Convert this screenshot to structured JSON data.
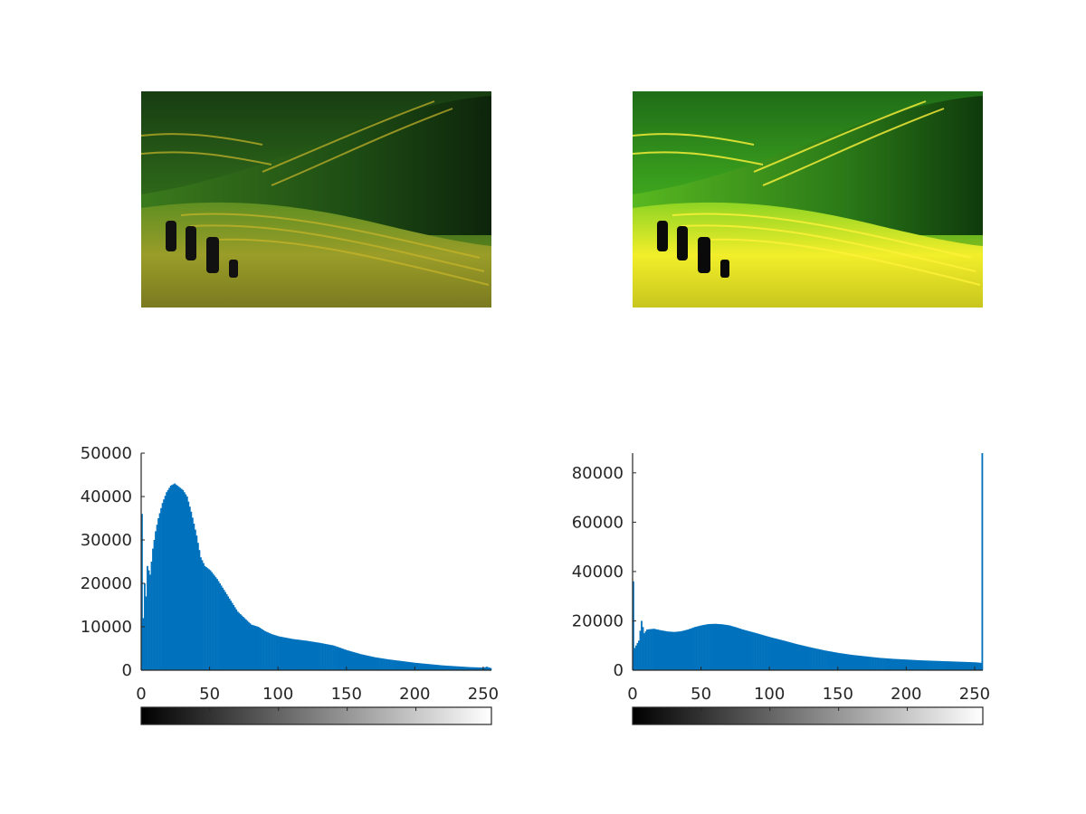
{
  "figure": {
    "background": "#ffffff",
    "bar_color": "#0072bd",
    "axis_color": "#262626"
  },
  "images": [
    {
      "name": "original-image",
      "description_icon": "terraced-rice-field-photo",
      "tone": "dark"
    },
    {
      "name": "equalized-image",
      "description_icon": "terraced-rice-field-photo",
      "tone": "bright"
    }
  ],
  "chart_data": [
    {
      "type": "bar",
      "title": "",
      "xlabel": "",
      "ylabel": "",
      "xlim": [
        0,
        256
      ],
      "ylim": [
        0,
        50000
      ],
      "xticks": [
        0,
        50,
        100,
        150,
        200,
        250
      ],
      "yticks": [
        0,
        10000,
        20000,
        30000,
        40000,
        50000
      ],
      "xtick_labels": [
        "0",
        "50",
        "100",
        "150",
        "200",
        "250"
      ],
      "ytick_labels": [
        "0",
        "10000",
        "20000",
        "30000",
        "40000",
        "50000"
      ],
      "grid": false,
      "colorbar": "grayscale 0-255",
      "anchors": {
        "x": [
          0,
          1,
          2,
          3,
          4,
          6,
          8,
          10,
          12,
          15,
          18,
          21,
          24,
          26,
          28,
          30,
          33,
          36,
          40,
          43,
          46,
          50,
          55,
          60,
          65,
          70,
          75,
          80,
          85,
          90,
          95,
          100,
          110,
          120,
          130,
          140,
          150,
          160,
          170,
          180,
          190,
          200,
          210,
          220,
          230,
          240,
          250,
          252,
          255
        ],
        "y": [
          36000,
          12000,
          20000,
          17000,
          24000,
          22000,
          28000,
          32000,
          35000,
          38500,
          41000,
          42500,
          43000,
          42500,
          42000,
          41500,
          40000,
          36500,
          31000,
          26000,
          24000,
          23000,
          21000,
          18500,
          16000,
          13500,
          12000,
          10500,
          10000,
          9000,
          8300,
          7800,
          7200,
          6800,
          6300,
          5700,
          4600,
          3700,
          3000,
          2500,
          2100,
          1700,
          1400,
          1100,
          900,
          700,
          600,
          800,
          500
        ]
      }
    },
    {
      "type": "bar",
      "title": "",
      "xlabel": "",
      "ylabel": "",
      "xlim": [
        0,
        256
      ],
      "ylim": [
        0,
        88000
      ],
      "xticks": [
        0,
        50,
        100,
        150,
        200,
        250
      ],
      "yticks": [
        0,
        20000,
        40000,
        60000,
        80000
      ],
      "xtick_labels": [
        "0",
        "50",
        "100",
        "150",
        "200",
        "250"
      ],
      "ytick_labels": [
        "0",
        "20000",
        "40000",
        "60000",
        "80000"
      ],
      "grid": false,
      "colorbar": "grayscale 0-255",
      "anchors": {
        "x": [
          0,
          1,
          2,
          4,
          6,
          8,
          10,
          15,
          20,
          25,
          30,
          35,
          40,
          45,
          50,
          55,
          60,
          65,
          70,
          75,
          80,
          90,
          100,
          110,
          120,
          130,
          140,
          150,
          160,
          170,
          180,
          190,
          200,
          210,
          220,
          230,
          240,
          250,
          254,
          255
        ],
        "y": [
          36000,
          9000,
          10000,
          12000,
          20000,
          15000,
          16500,
          16800,
          16200,
          15700,
          15500,
          15800,
          16500,
          17500,
          18200,
          18700,
          18800,
          18600,
          18200,
          17400,
          16500,
          15000,
          13400,
          12000,
          10500,
          9200,
          8000,
          7000,
          6200,
          5600,
          5000,
          4600,
          4300,
          4000,
          3800,
          3600,
          3400,
          3200,
          3000,
          88000
        ]
      }
    }
  ]
}
